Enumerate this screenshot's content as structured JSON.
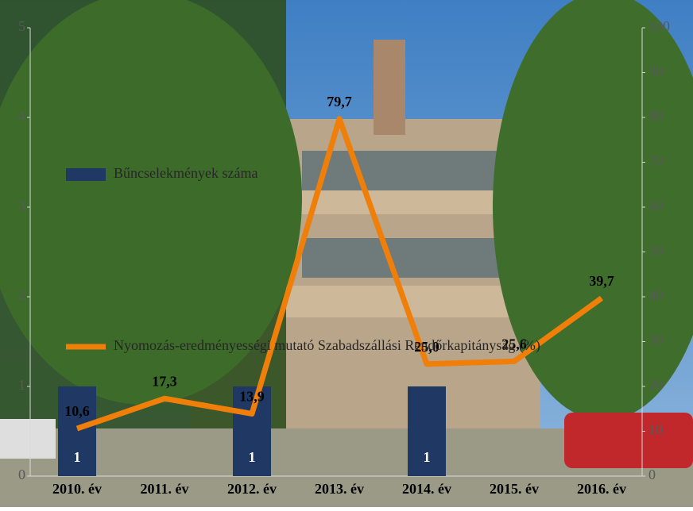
{
  "chart_data": {
    "type": "bar-line",
    "categories": [
      "2010. év",
      "2011. év",
      "2012. év",
      "2013. év",
      "2014. év",
      "2015. év",
      "2016. év"
    ],
    "series": [
      {
        "name": "Bűncselekmények száma",
        "type": "bar",
        "color": "#1f3864",
        "values": [
          1,
          null,
          1,
          null,
          1,
          null,
          null
        ]
      },
      {
        "name": "Nyomozás-eredményességi mutató Szabadszállási Rendőrkapitányság (%)",
        "type": "line",
        "axis": "y2",
        "color": "#f07f0a",
        "values": [
          10.6,
          17.3,
          13.9,
          79.7,
          25.0,
          25.6,
          39.7
        ],
        "value_labels": [
          "10,6",
          "17,3",
          "13,9",
          "79,7",
          "25,0",
          "25,6",
          "39,7"
        ]
      }
    ],
    "ylim": [
      0,
      5
    ],
    "yticks": [
      0,
      1,
      2,
      3,
      4,
      5
    ],
    "y2lim": [
      0,
      100
    ],
    "y2ticks": [
      0,
      10,
      20,
      30,
      40,
      50,
      60,
      70,
      80,
      90,
      100
    ]
  }
}
